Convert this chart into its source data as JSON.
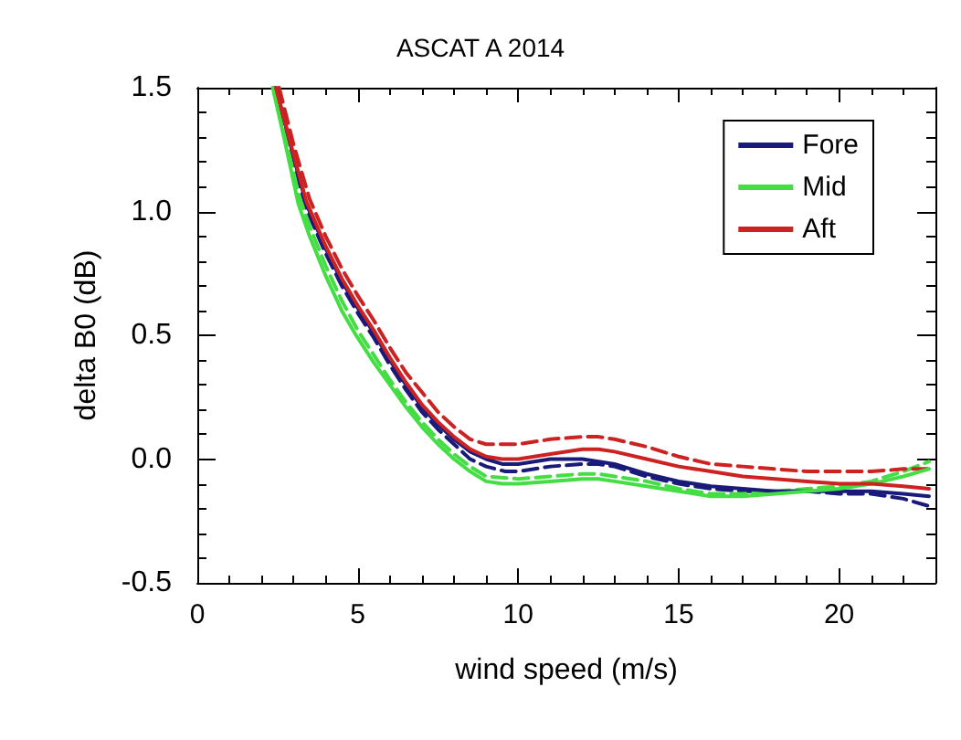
{
  "chart_data": {
    "type": "line",
    "title": "ASCAT A 2014",
    "xlabel": "wind speed (m/s)",
    "ylabel": "delta B0 (dB)",
    "xlim": [
      0,
      23
    ],
    "xticks": [
      0,
      5,
      10,
      15,
      20
    ],
    "ylim": [
      -0.5,
      1.5
    ],
    "yticks": [
      {
        "value": -0.5,
        "label": "-0.5"
      },
      {
        "value": 0,
        "label": "0.0"
      },
      {
        "value": 0.5,
        "label": "0.5"
      },
      {
        "value": 1,
        "label": "1.0"
      },
      {
        "value": 1.5,
        "label": "1.5"
      }
    ],
    "grid": false,
    "legend": "top right",
    "marker": "none",
    "series": [
      {
        "name": "Fore",
        "color": "#1a1a7a",
        "line_style": "solid",
        "x": [
          2.45,
          3,
          3.4,
          4,
          4.5,
          5,
          5.5,
          6,
          6.5,
          7,
          7.5,
          8,
          8.5,
          9,
          9.5,
          10,
          11,
          12,
          12.5,
          13,
          14,
          15,
          16,
          17,
          18,
          19,
          20,
          21,
          22,
          22.8
        ],
        "values": [
          1.5,
          1.22,
          1.03,
          0.85,
          0.72,
          0.61,
          0.51,
          0.4,
          0.3,
          0.21,
          0.14,
          0.08,
          0.03,
          0.0,
          -0.02,
          -0.02,
          0.0,
          0.0,
          -0.01,
          -0.02,
          -0.06,
          -0.09,
          -0.11,
          -0.12,
          -0.13,
          -0.13,
          -0.13,
          -0.13,
          -0.14,
          -0.15
        ]
      },
      {
        "name": "Mid",
        "color": "#44dd44",
        "line_style": "solid",
        "x": [
          2.35,
          2.7,
          3.15,
          3.5,
          4,
          4.5,
          4.9,
          5.5,
          6,
          6.5,
          7,
          7.5,
          8,
          8.5,
          9,
          9.5,
          10,
          11,
          12,
          12.5,
          13,
          14,
          15,
          16,
          17,
          18,
          19,
          20,
          21,
          22,
          22.8
        ],
        "values": [
          1.5,
          1.3,
          1.03,
          0.9,
          0.74,
          0.6,
          0.51,
          0.39,
          0.3,
          0.21,
          0.13,
          0.06,
          0.0,
          -0.05,
          -0.09,
          -0.1,
          -0.1,
          -0.09,
          -0.08,
          -0.08,
          -0.09,
          -0.11,
          -0.13,
          -0.15,
          -0.15,
          -0.14,
          -0.13,
          -0.12,
          -0.1,
          -0.07,
          -0.04
        ]
      },
      {
        "name": "Aft",
        "color": "#cc2222",
        "line_style": "solid",
        "x": [
          2.45,
          3,
          3.4,
          4,
          4.5,
          5,
          5.5,
          6,
          6.5,
          7,
          7.5,
          8,
          8.5,
          9,
          9.5,
          10,
          11,
          12,
          12.5,
          13,
          14,
          15,
          16,
          17,
          18,
          19,
          20,
          21,
          22,
          22.8
        ],
        "values": [
          1.5,
          1.23,
          1.04,
          0.86,
          0.73,
          0.62,
          0.52,
          0.41,
          0.31,
          0.22,
          0.15,
          0.09,
          0.04,
          0.01,
          0.0,
          0.0,
          0.02,
          0.04,
          0.04,
          0.03,
          0.0,
          -0.03,
          -0.05,
          -0.07,
          -0.08,
          -0.09,
          -0.1,
          -0.1,
          -0.11,
          -0.12
        ]
      },
      {
        "color": "#1a1a7a",
        "line_style": "dashed",
        "x": [
          2.4,
          3,
          3.4,
          4,
          4.5,
          5,
          5.5,
          6,
          6.5,
          7,
          7.5,
          8,
          8.5,
          9,
          9.6,
          10,
          11,
          12,
          12.5,
          13,
          14,
          15,
          16,
          17,
          18,
          19,
          20,
          21,
          22,
          22.8
        ],
        "values": [
          1.5,
          1.2,
          1.01,
          0.83,
          0.7,
          0.59,
          0.49,
          0.38,
          0.28,
          0.19,
          0.12,
          0.06,
          0.0,
          -0.03,
          -0.05,
          -0.05,
          -0.03,
          -0.02,
          -0.02,
          -0.03,
          -0.07,
          -0.1,
          -0.12,
          -0.13,
          -0.13,
          -0.13,
          -0.14,
          -0.14,
          -0.16,
          -0.19
        ]
      },
      {
        "color": "#44dd44",
        "line_style": "dashed",
        "x": [
          2.4,
          2.7,
          3.15,
          3.5,
          4,
          4.5,
          5,
          5.5,
          6,
          6.5,
          7,
          7.5,
          8,
          8.5,
          9,
          10,
          11,
          12,
          12.5,
          13,
          14,
          15,
          16,
          17,
          18,
          19,
          20,
          21,
          22,
          22.8
        ],
        "values": [
          1.5,
          1.33,
          1.07,
          0.94,
          0.78,
          0.64,
          0.52,
          0.42,
          0.32,
          0.23,
          0.15,
          0.08,
          0.02,
          -0.03,
          -0.07,
          -0.08,
          -0.07,
          -0.06,
          -0.06,
          -0.07,
          -0.09,
          -0.12,
          -0.14,
          -0.14,
          -0.13,
          -0.12,
          -0.11,
          -0.09,
          -0.05,
          -0.01
        ]
      },
      {
        "color": "#cc2222",
        "line_style": "dashed",
        "x": [
          2.55,
          3,
          3.5,
          4,
          4.5,
          5,
          5.5,
          6,
          6.5,
          7,
          7.5,
          8,
          8.5,
          9,
          10,
          11,
          12,
          12.5,
          13,
          14,
          15,
          16,
          17,
          18,
          19,
          20,
          21,
          22,
          22.8
        ],
        "values": [
          1.5,
          1.27,
          1.05,
          0.9,
          0.77,
          0.66,
          0.56,
          0.45,
          0.35,
          0.27,
          0.19,
          0.13,
          0.08,
          0.06,
          0.06,
          0.08,
          0.09,
          0.09,
          0.08,
          0.05,
          0.01,
          -0.02,
          -0.03,
          -0.04,
          -0.05,
          -0.05,
          -0.05,
          -0.04,
          -0.04
        ]
      }
    ]
  }
}
